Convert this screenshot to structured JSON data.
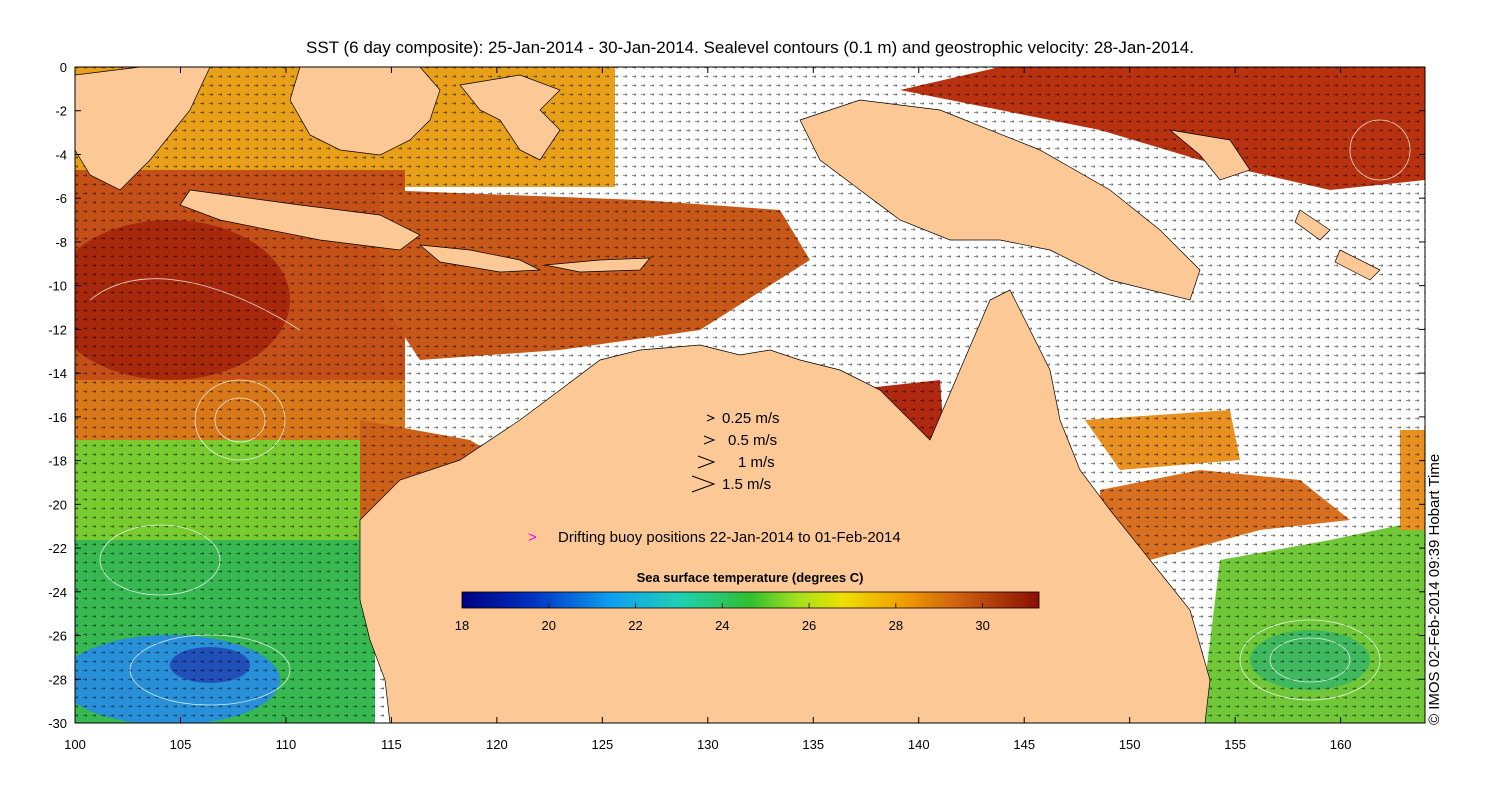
{
  "title": "SST (6 day composite): 25-Jan-2014 - 30-Jan-2014. Sealevel contours (0.1 m) and geostrophic velocity: 28-Jan-2014.",
  "credit": "© IMOS 02-Feb-2014 09:39 Hobart Time",
  "axes": {
    "x_ticks": [
      "100",
      "105",
      "110",
      "115",
      "120",
      "125",
      "130",
      "135",
      "140",
      "145",
      "150",
      "155",
      "160"
    ],
    "y_ticks": [
      "0",
      "-2",
      "-4",
      "-6",
      "-8",
      "-10",
      "-12",
      "-14",
      "-16",
      "-18",
      "-20",
      "-22",
      "-24",
      "-26",
      "-28",
      "-30"
    ],
    "x_range": [
      100,
      164
    ],
    "y_range": [
      -30,
      0
    ]
  },
  "velocity_legend": [
    {
      "label": "0.25 m/s",
      "speed": 0.25
    },
    {
      "label": "0.5 m/s",
      "speed": 0.5
    },
    {
      "label": "1 m/s",
      "speed": 1
    },
    {
      "label": "1.5 m/s",
      "speed": 1.5
    }
  ],
  "buoy_legend": {
    "label": "Drifting buoy positions 22-Jan-2014 to 01-Feb-2014",
    "color": "#ff00ff"
  },
  "colorbar": {
    "title": "Sea surface temperature (degrees C)",
    "ticks": [
      "18",
      "20",
      "22",
      "24",
      "26",
      "28",
      "30"
    ],
    "range": [
      18,
      31.3
    ]
  },
  "colors": {
    "land": "#fcc896",
    "cloud": "#ffffff",
    "warm": "#c04a10",
    "hot": "#9a1a08",
    "mid": "#e8a018",
    "cool": "#40c040",
    "cold": "#2080d8"
  }
}
